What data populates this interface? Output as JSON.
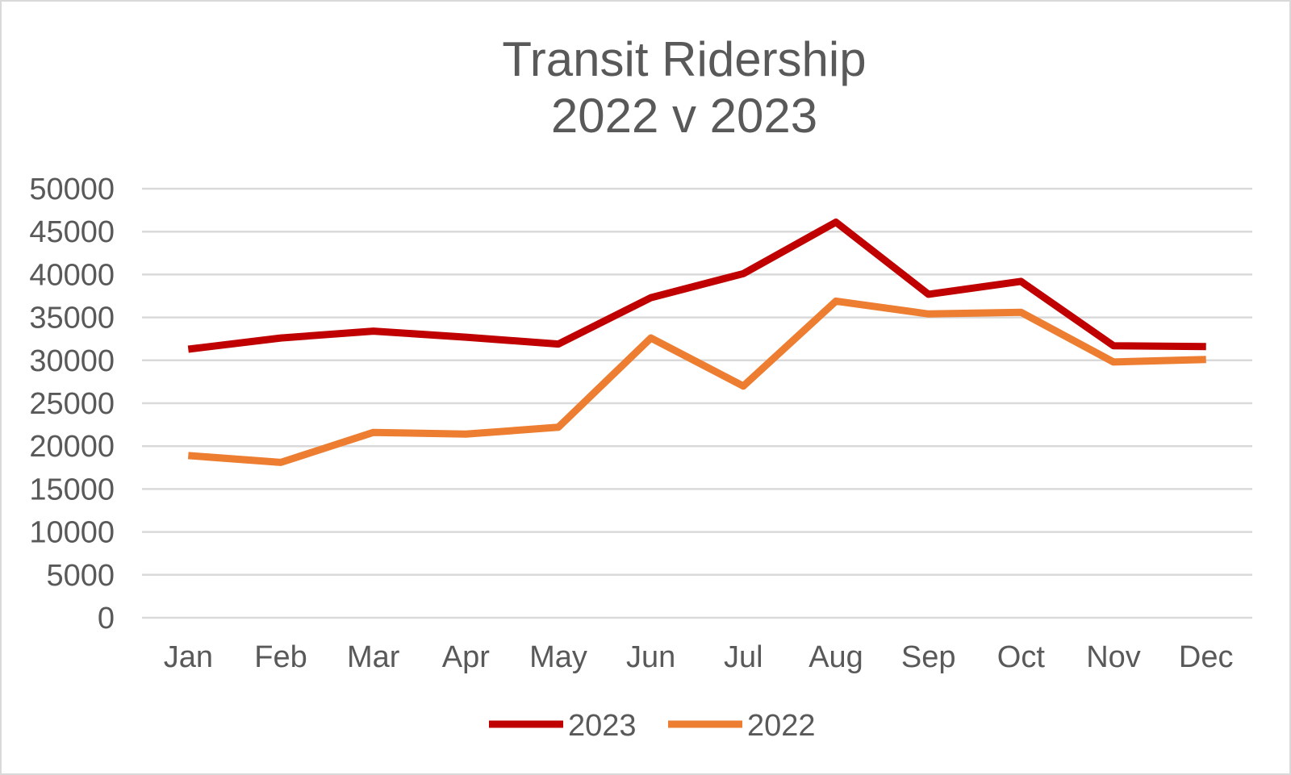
{
  "chart_data": {
    "type": "line",
    "title": [
      "Transit Ridership",
      "2022 v 2023"
    ],
    "xlabel": "",
    "ylabel": "",
    "categories": [
      "Jan",
      "Feb",
      "Mar",
      "Apr",
      "May",
      "Jun",
      "Jul",
      "Aug",
      "Sep",
      "Oct",
      "Nov",
      "Dec"
    ],
    "ylim": [
      0,
      50000
    ],
    "yticks": [
      "0",
      "5000",
      "10000",
      "15000",
      "20000",
      "25000",
      "30000",
      "35000",
      "40000",
      "45000",
      "50000"
    ],
    "grid": true,
    "legend_position": "bottom",
    "series": [
      {
        "name": "2023",
        "color": "#c00000",
        "values": [
          31300,
          32600,
          33400,
          32700,
          31900,
          37300,
          40100,
          46100,
          37700,
          39200,
          31700,
          31600
        ]
      },
      {
        "name": "2022",
        "color": "#ed7d31",
        "values": [
          18900,
          18100,
          21600,
          21400,
          22200,
          32600,
          27000,
          36900,
          35400,
          35600,
          29800,
          30100
        ]
      }
    ]
  }
}
